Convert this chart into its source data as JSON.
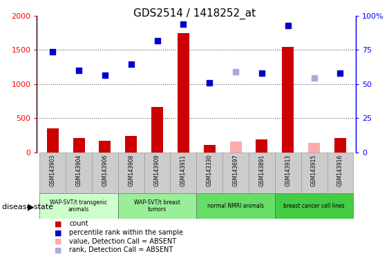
{
  "title": "GDS2514 / 1418252_at",
  "samples": [
    "GSM143903",
    "GSM143904",
    "GSM143906",
    "GSM143908",
    "GSM143909",
    "GSM143911",
    "GSM143330",
    "GSM143697",
    "GSM143891",
    "GSM143913",
    "GSM143915",
    "GSM143916"
  ],
  "count_values": [
    350,
    215,
    165,
    240,
    670,
    1750,
    110,
    0,
    190,
    1550,
    0,
    215
  ],
  "count_absent": [
    0,
    0,
    0,
    0,
    0,
    0,
    0,
    155,
    0,
    0,
    135,
    0
  ],
  "rank_values": [
    1470,
    1200,
    1130,
    1290,
    1640,
    1880,
    1020,
    0,
    1160,
    1860,
    0,
    1160
  ],
  "rank_absent": [
    0,
    0,
    0,
    0,
    0,
    0,
    0,
    1180,
    0,
    0,
    1090,
    0
  ],
  "ylim_left": [
    0,
    2000
  ],
  "ylim_right": [
    0,
    100
  ],
  "yticks_left": [
    0,
    500,
    1000,
    1500,
    2000
  ],
  "yticks_right": [
    0,
    25,
    50,
    75,
    100
  ],
  "groups": [
    {
      "label": "WAP-SVT/t transgenic\nanimals",
      "start": 0,
      "end": 3,
      "color": "#ccffcc"
    },
    {
      "label": "WAP-SVT/t breast\ntumors",
      "start": 3,
      "end": 6,
      "color": "#99ee99"
    },
    {
      "label": "normal NMRI animals",
      "start": 6,
      "end": 9,
      "color": "#66dd66"
    },
    {
      "label": "breast cancer cell lines",
      "start": 9,
      "end": 12,
      "color": "#44cc44"
    }
  ],
  "bar_color": "#cc0000",
  "bar_absent_color": "#ffaaaa",
  "rank_color": "#0000cc",
  "rank_absent_color": "#aaaadd",
  "bg_color": "#ffffff",
  "tick_label_bg": "#cccccc",
  "legend_items": [
    {
      "color": "#cc0000",
      "label": "count"
    },
    {
      "color": "#0000cc",
      "label": "percentile rank within the sample"
    },
    {
      "color": "#ffaaaa",
      "label": "value, Detection Call = ABSENT"
    },
    {
      "color": "#aaaadd",
      "label": "rank, Detection Call = ABSENT"
    }
  ]
}
